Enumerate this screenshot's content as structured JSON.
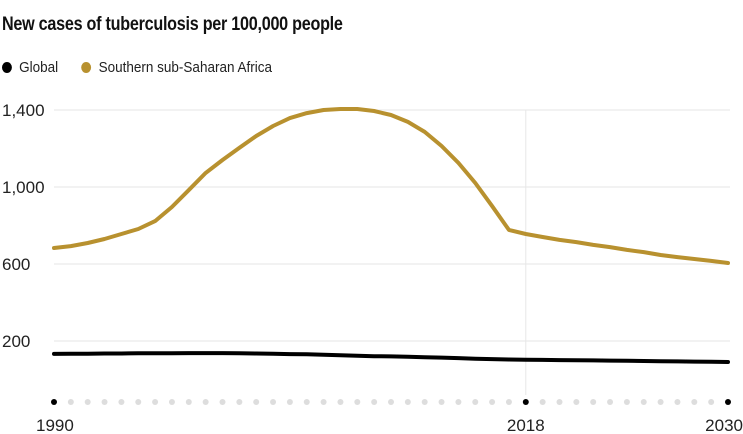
{
  "chart_data": {
    "type": "line",
    "title": "New cases of tuberculosis per 100,000 people",
    "xlabel": "",
    "ylabel": "",
    "x": [
      1990,
      1991,
      1992,
      1993,
      1994,
      1995,
      1996,
      1997,
      1998,
      1999,
      2000,
      2001,
      2002,
      2003,
      2004,
      2005,
      2006,
      2007,
      2008,
      2009,
      2010,
      2011,
      2012,
      2013,
      2014,
      2015,
      2016,
      2017,
      2018,
      2019,
      2020,
      2021,
      2022,
      2023,
      2024,
      2025,
      2026,
      2027,
      2028,
      2029,
      2030
    ],
    "series": [
      {
        "name": "Global",
        "color": "#000000",
        "values": [
          133,
          134,
          134,
          135,
          135,
          136,
          136,
          136,
          137,
          137,
          137,
          136,
          135,
          134,
          132,
          131,
          129,
          126,
          123,
          121,
          120,
          118,
          116,
          114,
          111,
          108,
          106,
          104,
          103,
          102,
          101,
          100,
          99,
          98,
          97,
          96,
          95,
          94,
          93,
          92,
          91
        ]
      },
      {
        "name": "Southern sub-Saharan Africa",
        "color": "#b8912f",
        "values": [
          683,
          693,
          709,
          730,
          756,
          782,
          823,
          896,
          984,
          1073,
          1140,
          1203,
          1265,
          1317,
          1358,
          1384,
          1400,
          1405,
          1405,
          1395,
          1374,
          1338,
          1286,
          1213,
          1125,
          1021,
          901,
          777,
          756,
          740,
          725,
          714,
          699,
          688,
          673,
          662,
          647,
          636,
          626,
          616,
          605
        ]
      }
    ],
    "yticks": [
      200,
      600,
      "1,000",
      "1,400"
    ],
    "ytick_values": [
      200,
      600,
      1000,
      1400
    ],
    "xticks": [
      "1990",
      "2018",
      "2030"
    ],
    "xtick_values": [
      1990,
      2018,
      2030
    ],
    "ylim": [
      0,
      1400
    ],
    "xlim": [
      1990,
      2030
    ],
    "grid": true,
    "legend": "top-left"
  }
}
